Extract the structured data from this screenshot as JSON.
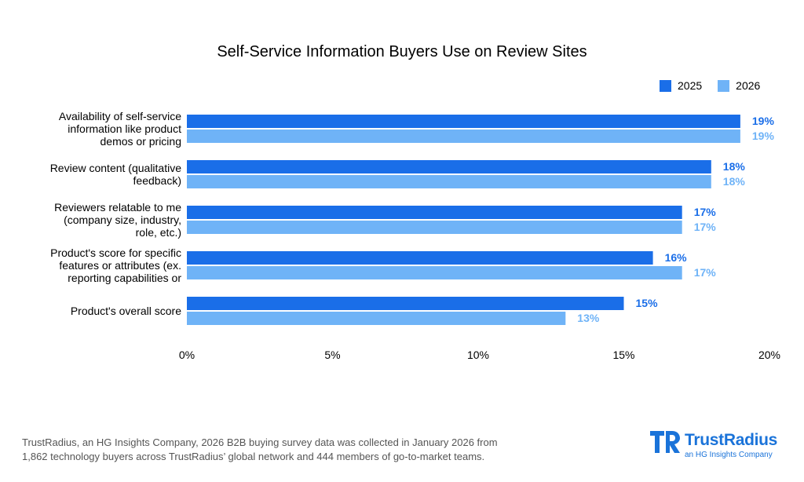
{
  "chart_data": {
    "type": "bar",
    "orientation": "horizontal",
    "title": "Self-Service Information Buyers Use on Review Sites",
    "categories": [
      "Availability of self-service information like product demos or pricing",
      "Review content (qualitative feedback)",
      "Reviewers relatable to me (company size, industry, role, etc.)",
      "Product's score for specific features or attributes (ex. reporting capabilities or",
      "Product's overall score"
    ],
    "category_lines": [
      [
        "Availability of self-service",
        "information like product",
        "demos or pricing"
      ],
      [
        "Review content (qualitative",
        "feedback)"
      ],
      [
        "Reviewers relatable to me",
        "(company size, industry,",
        "role, etc.)"
      ],
      [
        "Product's score for specific",
        "features or attributes (ex.",
        "reporting capabilities or"
      ],
      [
        "Product's overall score"
      ]
    ],
    "series": [
      {
        "name": "2025",
        "color": "#1a6ee8",
        "values": [
          19,
          18,
          17,
          16,
          15
        ],
        "labels": [
          "19%",
          "18%",
          "17%",
          "16%",
          "15%"
        ]
      },
      {
        "name": "2026",
        "color": "#6fb3f7",
        "values": [
          19,
          18,
          17,
          17,
          13
        ],
        "labels": [
          "19%",
          "18%",
          "17%",
          "17%",
          "13%"
        ]
      }
    ],
    "xlim": [
      0,
      20
    ],
    "xticks": [
      "0%",
      "5%",
      "10%",
      "15%",
      "20%"
    ],
    "grid": false,
    "legend": "top-right"
  },
  "footer": {
    "line1": "TrustRadius, an HG Insights Company, 2026 B2B buying survey data was collected in January 2026 from",
    "line2": "1,862 technology buyers across TrustRadius’ global network and 444 members of go-to-market teams."
  },
  "logo": {
    "name": "TrustRadius",
    "tagline": "an HG Insights Company",
    "color": "#1a73d9"
  }
}
